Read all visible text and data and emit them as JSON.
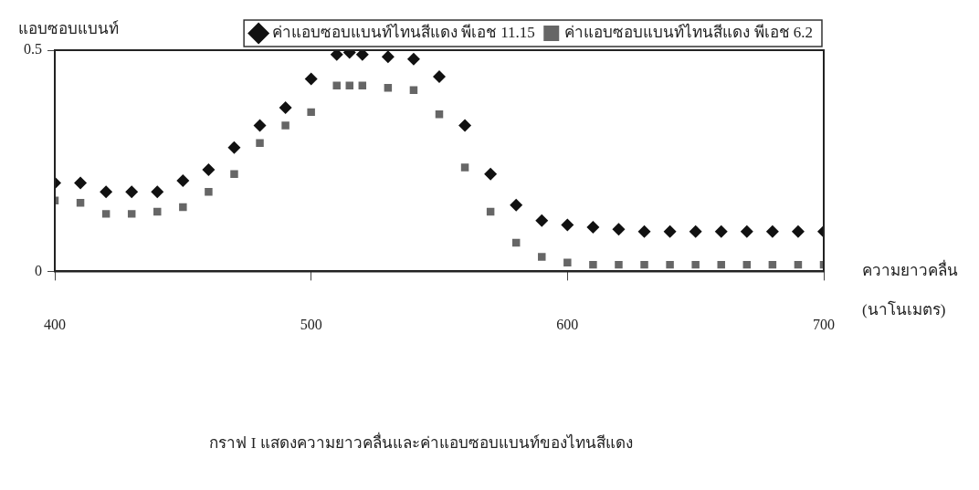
{
  "chart_data": {
    "type": "scatter",
    "title": "กราฟ I แสดงความยาวคลื่นและค่าแอบซอบแบนท์ของไทนสีแดง",
    "xlabel": "ความยาวคลื่น (นาโนเมตร)",
    "ylabel": "แอบซอบแบนท์",
    "x": [
      400,
      410,
      420,
      430,
      440,
      450,
      460,
      470,
      480,
      490,
      500,
      510,
      515,
      520,
      530,
      540,
      550,
      560,
      570,
      580,
      590,
      600,
      610,
      620,
      630,
      640,
      650,
      660,
      670,
      680,
      690,
      700
    ],
    "series": [
      {
        "name": "ค่าแอบซอบแบนท์ไทนสีแดง พีเอช 11.15",
        "color": "#111111",
        "marker": "diamond",
        "values": [
          0.2,
          0.2,
          0.18,
          0.18,
          0.18,
          0.205,
          0.23,
          0.28,
          0.33,
          0.37,
          0.435,
          0.49,
          0.495,
          0.49,
          0.485,
          0.48,
          0.44,
          0.33,
          0.22,
          0.15,
          0.115,
          0.105,
          0.1,
          0.095,
          0.09,
          0.09,
          0.09,
          0.09,
          0.09,
          0.09,
          0.09,
          0.09
        ]
      },
      {
        "name": "ค่าแอบซอบแบนท์ไทนสีแดง พีเอช 6.2",
        "color": "#666666",
        "marker": "square",
        "values": [
          0.16,
          0.155,
          0.13,
          0.13,
          0.135,
          0.145,
          0.18,
          0.22,
          0.29,
          0.33,
          0.36,
          0.42,
          0.42,
          0.42,
          0.415,
          0.41,
          0.355,
          0.235,
          0.135,
          0.065,
          0.033,
          0.02,
          0.015,
          0.015,
          0.015,
          0.015,
          0.015,
          0.015,
          0.015,
          0.015,
          0.015,
          0.015
        ]
      }
    ],
    "xlim": [
      400,
      700
    ],
    "xticks": [
      400,
      500,
      600,
      700
    ],
    "ylim": [
      0,
      0.5
    ],
    "yticks": [
      0,
      0.5
    ],
    "grid": false,
    "legend": "top right"
  }
}
